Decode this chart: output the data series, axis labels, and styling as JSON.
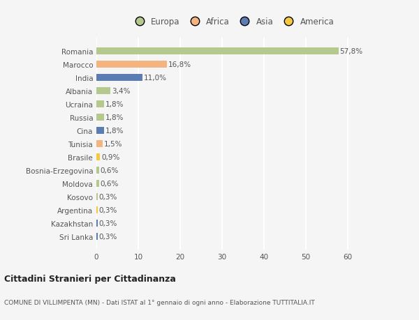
{
  "countries": [
    "Romania",
    "Marocco",
    "India",
    "Albania",
    "Ucraina",
    "Russia",
    "Cina",
    "Tunisia",
    "Brasile",
    "Bosnia-Erzegovina",
    "Moldova",
    "Kosovo",
    "Argentina",
    "Kazakhstan",
    "Sri Lanka"
  ],
  "values": [
    57.8,
    16.8,
    11.0,
    3.4,
    1.8,
    1.8,
    1.8,
    1.5,
    0.9,
    0.6,
    0.6,
    0.3,
    0.3,
    0.3,
    0.3
  ],
  "labels": [
    "57,8%",
    "16,8%",
    "11,0%",
    "3,4%",
    "1,8%",
    "1,8%",
    "1,8%",
    "1,5%",
    "0,9%",
    "0,6%",
    "0,6%",
    "0,3%",
    "0,3%",
    "0,3%",
    "0,3%"
  ],
  "continents": [
    "Europa",
    "Africa",
    "Asia",
    "Europa",
    "Europa",
    "Europa",
    "Asia",
    "Africa",
    "America",
    "Europa",
    "Europa",
    "Europa",
    "America",
    "Asia",
    "Asia"
  ],
  "continent_colors": {
    "Europa": "#b5c98e",
    "Africa": "#f4b480",
    "Asia": "#5b7db1",
    "America": "#f5c842"
  },
  "legend_order": [
    "Europa",
    "Africa",
    "Asia",
    "America"
  ],
  "xlim": [
    0,
    65
  ],
  "xticks": [
    0,
    10,
    20,
    30,
    40,
    50,
    60
  ],
  "background_color": "#f5f5f5",
  "grid_color": "#ffffff",
  "title": "Cittadini Stranieri per Cittadinanza",
  "subtitle": "COMUNE DI VILLIMPENTA (MN) - Dati ISTAT al 1° gennaio di ogni anno - Elaborazione TUTTITALIA.IT",
  "bar_height": 0.55,
  "label_fontsize": 7.5,
  "tick_fontsize": 7.5,
  "legend_fontsize": 8.5
}
